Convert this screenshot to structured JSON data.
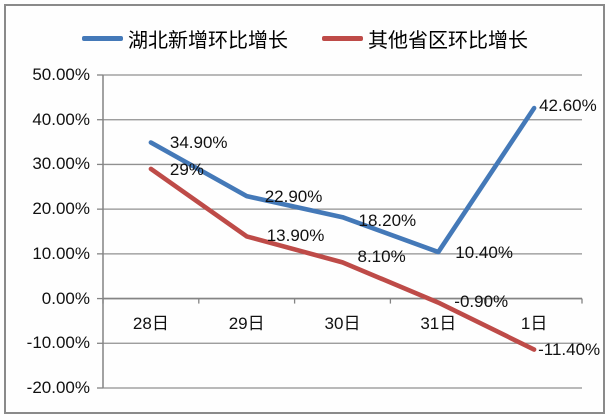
{
  "chart_data": {
    "type": "line",
    "title": "",
    "categories": [
      "28日",
      "29日",
      "30日",
      "31日",
      "1日"
    ],
    "series": [
      {
        "name": "湖北新增环比增长",
        "color": "#4479B8",
        "values": [
          34.9,
          22.9,
          18.2,
          10.4,
          42.6
        ],
        "point_labels": [
          "34.90%",
          "22.90%",
          "18.20%",
          "10.40%",
          "42.60%"
        ]
      },
      {
        "name": "其他省区环比增长",
        "color": "#BE4B48",
        "values": [
          29,
          13.9,
          8.1,
          -0.9,
          -11.4
        ],
        "point_labels": [
          "29%",
          "13.90%",
          "8.10%",
          "-0.90%",
          "-11.40%"
        ]
      }
    ],
    "y_axis": {
      "min": -20,
      "max": 50,
      "step": 10,
      "tick_labels": [
        "50.00%",
        "40.00%",
        "30.00%",
        "20.00%",
        "10.00%",
        "0.00%",
        "-10.00%",
        "-20.00%"
      ]
    },
    "x_axis_baseline_value": 0,
    "grid": true,
    "legend_position": "top"
  },
  "colors": {
    "gridline": "#909090",
    "axis": "#848484",
    "chart_border": "#8a8a8a",
    "label_text": "#111111",
    "background": "#fefefe"
  }
}
